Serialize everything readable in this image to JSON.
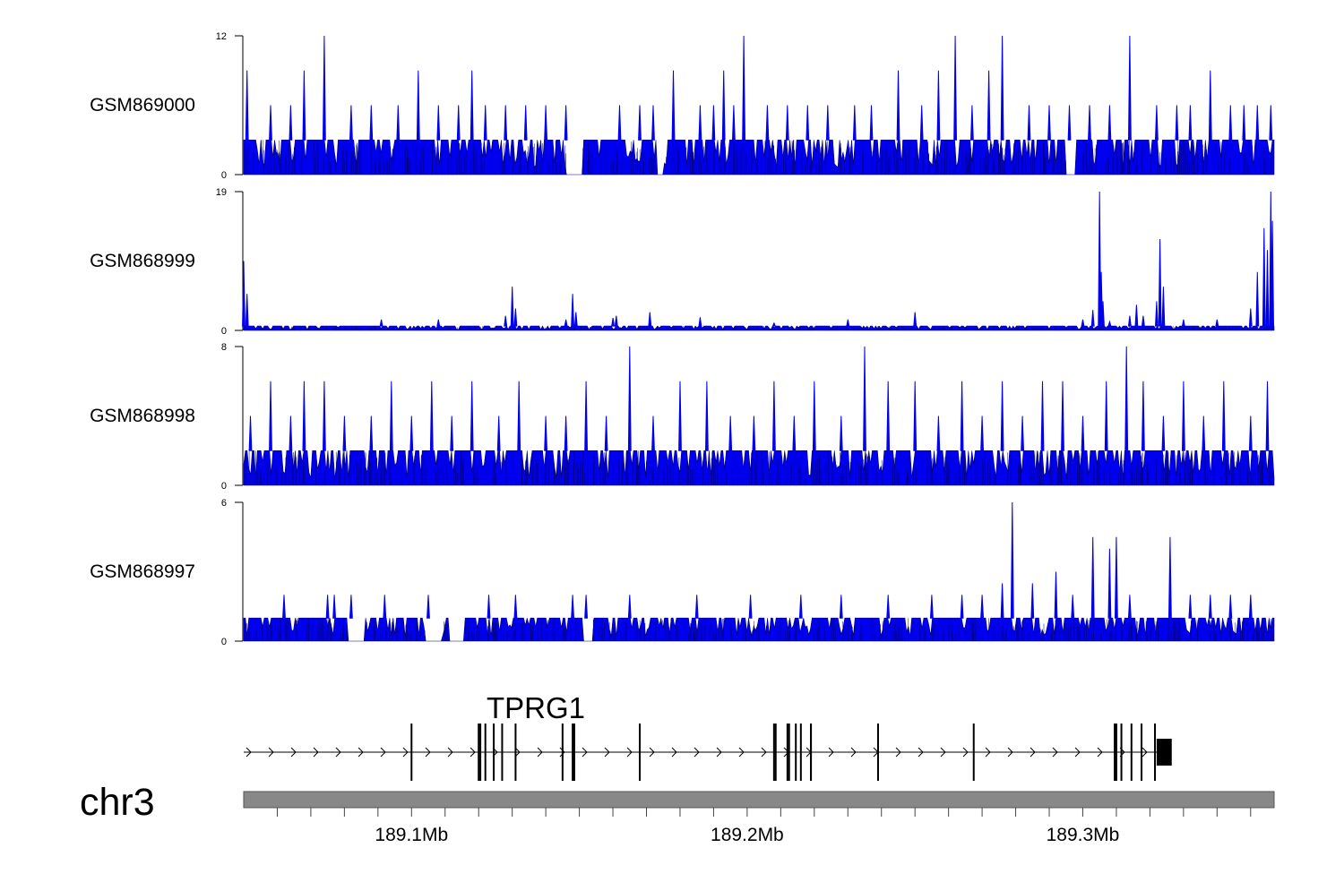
{
  "chart_data": {
    "type": "area",
    "title": "",
    "chromosome": "chr3",
    "x_axis": {
      "unit": "Mb",
      "range": [
        189.05,
        189.357
      ],
      "tick_labels": [
        {
          "value": 189.1,
          "label": "189.1Mb"
        },
        {
          "value": 189.2,
          "label": "189.2Mb"
        },
        {
          "value": 189.3,
          "label": "189.3Mb"
        }
      ],
      "minor_ticks": [
        189.06,
        189.07,
        189.08,
        189.09,
        189.1,
        189.11,
        189.12,
        189.13,
        189.14,
        189.15,
        189.16,
        189.17,
        189.18,
        189.19,
        189.2,
        189.21,
        189.22,
        189.23,
        189.24,
        189.25,
        189.26,
        189.27,
        189.28,
        189.29,
        189.3,
        189.31,
        189.32,
        189.33,
        189.34,
        189.35
      ]
    },
    "series": [
      {
        "name": "GSM869000",
        "ylim": [
          0,
          12
        ],
        "ymin_label": "0",
        "ymax_label": "12",
        "baseline": 3,
        "peaks": [
          [
            189.051,
            9
          ],
          [
            189.058,
            6
          ],
          [
            189.064,
            6
          ],
          [
            189.068,
            9
          ],
          [
            189.074,
            12
          ],
          [
            189.082,
            6
          ],
          [
            189.088,
            6
          ],
          [
            189.096,
            6
          ],
          [
            189.102,
            9
          ],
          [
            189.108,
            6
          ],
          [
            189.114,
            6
          ],
          [
            189.118,
            9
          ],
          [
            189.122,
            6
          ],
          [
            189.128,
            6
          ],
          [
            189.134,
            6
          ],
          [
            189.14,
            6
          ],
          [
            189.146,
            6
          ],
          [
            189.162,
            6
          ],
          [
            189.168,
            6
          ],
          [
            189.172,
            6
          ],
          [
            189.178,
            9
          ],
          [
            189.186,
            6
          ],
          [
            189.19,
            6
          ],
          [
            189.193,
            9
          ],
          [
            189.196,
            6
          ],
          [
            189.199,
            12
          ],
          [
            189.206,
            6
          ],
          [
            189.212,
            6
          ],
          [
            189.218,
            6
          ],
          [
            189.224,
            6
          ],
          [
            189.232,
            6
          ],
          [
            189.237,
            6
          ],
          [
            189.245,
            9
          ],
          [
            189.252,
            6
          ],
          [
            189.257,
            9
          ],
          [
            189.262,
            12
          ],
          [
            189.267,
            6
          ],
          [
            189.272,
            9
          ],
          [
            189.276,
            12
          ],
          [
            189.284,
            6
          ],
          [
            189.29,
            6
          ],
          [
            189.296,
            6
          ],
          [
            189.302,
            6
          ],
          [
            189.308,
            6
          ],
          [
            189.314,
            12
          ],
          [
            189.322,
            6
          ],
          [
            189.328,
            6
          ],
          [
            189.332,
            6
          ],
          [
            189.338,
            9
          ],
          [
            189.344,
            6
          ],
          [
            189.348,
            6
          ],
          [
            189.352,
            6
          ],
          [
            189.356,
            6
          ]
        ],
        "low_regions": [
          [
            189.146,
            189.151
          ],
          [
            189.173,
            189.175
          ],
          [
            189.295,
            189.298
          ]
        ]
      },
      {
        "name": "GSM868999",
        "ylim": [
          0,
          19
        ],
        "ymin_label": "0",
        "ymax_label": "19",
        "baseline": 0.6,
        "peaks": [
          [
            189.05,
            9.5
          ],
          [
            189.051,
            5
          ],
          [
            189.091,
            1.5
          ],
          [
            189.108,
            1.5
          ],
          [
            189.128,
            2
          ],
          [
            189.13,
            6
          ],
          [
            189.131,
            3
          ],
          [
            189.146,
            1.5
          ],
          [
            189.148,
            5
          ],
          [
            189.149,
            2.5
          ],
          [
            189.16,
            1.7
          ],
          [
            189.161,
            2
          ],
          [
            189.171,
            2.5
          ],
          [
            189.186,
            1.8
          ],
          [
            189.208,
            1
          ],
          [
            189.23,
            1.5
          ],
          [
            189.25,
            2.5
          ],
          [
            189.3,
            1.5
          ],
          [
            189.303,
            2.8
          ],
          [
            189.305,
            19
          ],
          [
            189.3055,
            8
          ],
          [
            189.306,
            4
          ],
          [
            189.308,
            1.2
          ],
          [
            189.314,
            2
          ],
          [
            189.316,
            3.5
          ],
          [
            189.318,
            2
          ],
          [
            189.322,
            4
          ],
          [
            189.323,
            12.5
          ],
          [
            189.324,
            6
          ],
          [
            189.33,
            1.5
          ],
          [
            189.34,
            1.5
          ],
          [
            189.35,
            3
          ],
          [
            189.352,
            8
          ],
          [
            189.354,
            14
          ],
          [
            189.355,
            11
          ],
          [
            189.356,
            19
          ],
          [
            189.3565,
            15
          ]
        ],
        "low_regions": []
      },
      {
        "name": "GSM868998",
        "ylim": [
          0,
          8
        ],
        "ymin_label": "0",
        "ymax_label": "8",
        "baseline": 2,
        "peaks": [
          [
            189.052,
            4
          ],
          [
            189.058,
            6
          ],
          [
            189.064,
            4
          ],
          [
            189.068,
            6
          ],
          [
            189.074,
            6
          ],
          [
            189.08,
            4
          ],
          [
            189.088,
            4
          ],
          [
            189.094,
            6
          ],
          [
            189.1,
            4
          ],
          [
            189.106,
            6
          ],
          [
            189.112,
            4
          ],
          [
            189.118,
            6
          ],
          [
            189.126,
            4
          ],
          [
            189.132,
            6
          ],
          [
            189.14,
            4
          ],
          [
            189.146,
            4
          ],
          [
            189.152,
            6
          ],
          [
            189.158,
            4
          ],
          [
            189.165,
            8
          ],
          [
            189.172,
            4
          ],
          [
            189.18,
            6
          ],
          [
            189.188,
            6
          ],
          [
            189.195,
            4
          ],
          [
            189.202,
            4
          ],
          [
            189.208,
            6
          ],
          [
            189.214,
            4
          ],
          [
            189.22,
            6
          ],
          [
            189.228,
            4
          ],
          [
            189.235,
            8
          ],
          [
            189.242,
            6
          ],
          [
            189.25,
            6
          ],
          [
            189.257,
            4
          ],
          [
            189.264,
            6
          ],
          [
            189.27,
            4
          ],
          [
            189.276,
            6
          ],
          [
            189.282,
            4
          ],
          [
            189.288,
            6
          ],
          [
            189.294,
            6
          ],
          [
            189.3,
            4
          ],
          [
            189.307,
            6
          ],
          [
            189.313,
            8
          ],
          [
            189.318,
            6
          ],
          [
            189.324,
            4
          ],
          [
            189.33,
            6
          ],
          [
            189.336,
            4
          ],
          [
            189.342,
            6
          ],
          [
            189.35,
            4
          ],
          [
            189.355,
            6
          ]
        ],
        "low_regions": []
      },
      {
        "name": "GSM868997",
        "ylim": [
          0,
          6
        ],
        "ymin_label": "0",
        "ymax_label": "6",
        "baseline": 1,
        "peaks": [
          [
            189.062,
            2
          ],
          [
            189.075,
            2
          ],
          [
            189.077,
            2
          ],
          [
            189.082,
            2
          ],
          [
            189.092,
            2
          ],
          [
            189.105,
            2
          ],
          [
            189.123,
            2
          ],
          [
            189.131,
            2
          ],
          [
            189.148,
            2
          ],
          [
            189.152,
            2
          ],
          [
            189.165,
            2
          ],
          [
            189.185,
            2
          ],
          [
            189.201,
            2
          ],
          [
            189.216,
            2
          ],
          [
            189.228,
            2
          ],
          [
            189.242,
            2
          ],
          [
            189.255,
            2
          ],
          [
            189.264,
            2
          ],
          [
            189.27,
            2
          ],
          [
            189.276,
            2.5
          ],
          [
            189.279,
            6
          ],
          [
            189.285,
            2.5
          ],
          [
            189.292,
            3
          ],
          [
            189.297,
            2
          ],
          [
            189.303,
            4.5
          ],
          [
            189.308,
            4
          ],
          [
            189.31,
            4.5
          ],
          [
            189.314,
            2
          ],
          [
            189.326,
            4.5
          ],
          [
            189.332,
            2
          ],
          [
            189.338,
            2
          ],
          [
            189.344,
            2
          ],
          [
            189.35,
            2
          ]
        ],
        "low_regions": [
          [
            189.081,
            189.086
          ],
          [
            189.104,
            189.109
          ],
          [
            189.111,
            189.116
          ],
          [
            189.151,
            189.154
          ]
        ]
      }
    ],
    "gene": {
      "name": "TPRG1",
      "strand": "+",
      "start": 189.05,
      "end": 189.326,
      "exons": [
        189.1,
        189.12,
        189.1205,
        189.122,
        189.1245,
        189.127,
        189.131,
        189.145,
        189.148,
        189.1485,
        189.168,
        189.208,
        189.2085,
        189.212,
        189.2125,
        189.2145,
        189.216,
        189.219,
        189.219,
        189.239,
        189.2675,
        189.3095,
        189.31,
        189.3115,
        189.3145,
        189.3175,
        189.3215
      ],
      "utr_block": [
        189.322,
        189.3265
      ]
    },
    "colors": {
      "signal": "#0000ee",
      "signal_dark": "#00007a",
      "axis": "#000000",
      "ideogram": "#888888",
      "ideogram_border": "#555555"
    }
  }
}
